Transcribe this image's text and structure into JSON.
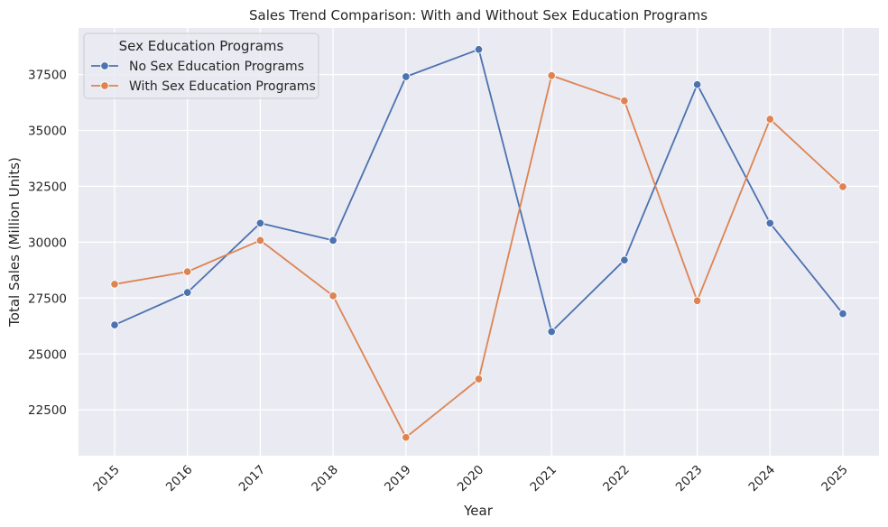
{
  "chart_data": {
    "type": "line",
    "title": "Sales Trend Comparison: With and Without Sex Education Programs",
    "xlabel": "Year",
    "ylabel": "Total Sales (Million Units)",
    "categories": [
      "2015",
      "2016",
      "2017",
      "2018",
      "2019",
      "2020",
      "2021",
      "2022",
      "2023",
      "2024",
      "2025"
    ],
    "y_ticks": [
      "22500",
      "25000",
      "27500",
      "30000",
      "32500",
      "35000",
      "37500"
    ],
    "ylim": [
      20450,
      39580
    ],
    "grid": true,
    "legend": {
      "title": "Sex Education Programs",
      "placement": "top-left"
    },
    "series": [
      {
        "name": "No Sex Education Programs",
        "color": "#4c72b0",
        "values": [
          26300,
          27750,
          30850,
          30080,
          37400,
          38620,
          26000,
          29200,
          37050,
          30850,
          26800
        ]
      },
      {
        "name": "With Sex Education Programs",
        "color": "#dd8452",
        "values": [
          28120,
          28680,
          30080,
          27600,
          21270,
          23880,
          37450,
          36320,
          27380,
          35500,
          32480
        ]
      }
    ]
  }
}
